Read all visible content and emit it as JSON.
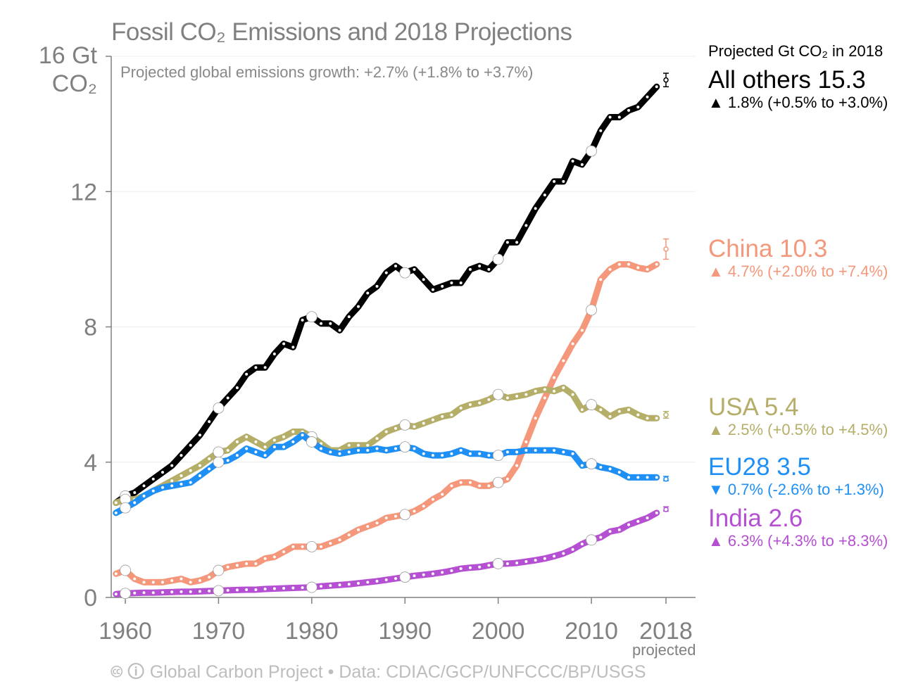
{
  "chart_data": {
    "type": "line",
    "title": "Fossil CO₂ Emissions and 2018 Projections",
    "subtitle": "Projected global emissions growth: +2.7% (+1.8% to +3.7%)",
    "ylabel": [
      "16 Gt",
      "CO₂"
    ],
    "ylim": [
      0,
      16
    ],
    "xlim": [
      1959,
      2018
    ],
    "yticks": [
      0,
      4,
      8,
      12
    ],
    "xticks": [
      1960,
      1970,
      1980,
      1990,
      2000,
      2010,
      2018
    ],
    "xtick_labels": [
      "1960",
      "1970",
      "1980",
      "1990",
      "2000",
      "2010",
      "2018"
    ],
    "xtick_note": "projected",
    "grid": true,
    "legend_title": "Projected Gt CO₂ in 2018",
    "legend_placement": "right",
    "x_start": 1959,
    "series": [
      {
        "name": "All others",
        "color": "#000000",
        "label": "All others 15.3",
        "change": "▲ 1.8% (+0.5% to +3.0%)",
        "projection": 15.3,
        "projection_range": [
          15.1,
          15.5
        ],
        "values": [
          2.8,
          3.0,
          3.1,
          3.3,
          3.5,
          3.7,
          3.9,
          4.2,
          4.5,
          4.8,
          5.2,
          5.6,
          5.9,
          6.2,
          6.6,
          6.8,
          6.8,
          7.2,
          7.5,
          7.4,
          8.2,
          8.3,
          8.1,
          8.1,
          7.9,
          8.3,
          8.6,
          9.0,
          9.2,
          9.6,
          9.8,
          9.6,
          9.7,
          9.4,
          9.1,
          9.2,
          9.3,
          9.3,
          9.7,
          9.8,
          9.7,
          10.0,
          10.5,
          10.5,
          11.0,
          11.5,
          11.9,
          12.3,
          12.3,
          12.9,
          12.8,
          13.2,
          13.8,
          14.2,
          14.2,
          14.4,
          14.5,
          14.8,
          15.1
        ]
      },
      {
        "name": "China",
        "color": "#f4977a",
        "label": "China 10.3",
        "change": "▲ 4.7% (+2.0% to +7.4%)",
        "projection": 10.3,
        "projection_range": [
          10.0,
          10.6
        ],
        "values": [
          0.7,
          0.8,
          0.55,
          0.45,
          0.45,
          0.45,
          0.5,
          0.55,
          0.45,
          0.5,
          0.6,
          0.8,
          0.9,
          0.95,
          1.0,
          1.0,
          1.15,
          1.2,
          1.35,
          1.5,
          1.5,
          1.5,
          1.5,
          1.6,
          1.7,
          1.85,
          2.0,
          2.1,
          2.2,
          2.35,
          2.4,
          2.45,
          2.55,
          2.7,
          2.9,
          3.05,
          3.3,
          3.4,
          3.4,
          3.3,
          3.3,
          3.4,
          3.5,
          3.9,
          4.6,
          5.3,
          5.9,
          6.5,
          7.0,
          7.5,
          7.9,
          8.5,
          9.4,
          9.7,
          9.85,
          9.85,
          9.75,
          9.7,
          9.85
        ]
      },
      {
        "name": "USA",
        "color": "#b5ae68",
        "label": "USA 5.4",
        "change": "▲ 2.5% (+0.5% to +4.5%)",
        "projection": 5.4,
        "projection_range": [
          5.3,
          5.5
        ],
        "values": [
          2.8,
          2.9,
          2.9,
          3.0,
          3.15,
          3.3,
          3.45,
          3.6,
          3.75,
          3.9,
          4.1,
          4.3,
          4.35,
          4.6,
          4.75,
          4.6,
          4.45,
          4.65,
          4.75,
          4.9,
          4.9,
          4.75,
          4.55,
          4.35,
          4.35,
          4.5,
          4.5,
          4.5,
          4.7,
          4.9,
          5.0,
          5.1,
          5.05,
          5.15,
          5.25,
          5.35,
          5.4,
          5.6,
          5.7,
          5.75,
          5.85,
          6.0,
          5.9,
          5.95,
          6.0,
          6.1,
          6.15,
          6.1,
          6.2,
          6.0,
          5.55,
          5.7,
          5.55,
          5.35,
          5.5,
          5.55,
          5.4,
          5.3,
          5.3
        ]
      },
      {
        "name": "EU28",
        "color": "#1e8ff5",
        "label": "EU28 3.5",
        "change": "▼ 0.7% (-2.6% to +1.3%)",
        "projection": 3.5,
        "projection_range": [
          3.45,
          3.58
        ],
        "values": [
          2.5,
          2.65,
          2.8,
          3.0,
          3.15,
          3.25,
          3.3,
          3.35,
          3.4,
          3.6,
          3.8,
          4.0,
          4.05,
          4.2,
          4.4,
          4.3,
          4.2,
          4.45,
          4.45,
          4.6,
          4.8,
          4.6,
          4.4,
          4.3,
          4.25,
          4.3,
          4.35,
          4.35,
          4.4,
          4.35,
          4.4,
          4.45,
          4.4,
          4.25,
          4.2,
          4.2,
          4.25,
          4.35,
          4.25,
          4.25,
          4.2,
          4.2,
          4.3,
          4.3,
          4.35,
          4.35,
          4.35,
          4.35,
          4.3,
          4.25,
          3.9,
          3.95,
          3.85,
          3.8,
          3.7,
          3.55,
          3.55,
          3.55,
          3.55
        ]
      },
      {
        "name": "India",
        "color": "#b550d2",
        "label": "India 2.6",
        "change": "▲ 6.3% (+4.3% to +8.3%)",
        "projection": 2.6,
        "projection_range": [
          2.55,
          2.68
        ],
        "values": [
          0.1,
          0.12,
          0.13,
          0.14,
          0.14,
          0.15,
          0.16,
          0.17,
          0.17,
          0.18,
          0.19,
          0.2,
          0.21,
          0.22,
          0.23,
          0.23,
          0.25,
          0.26,
          0.27,
          0.28,
          0.29,
          0.3,
          0.33,
          0.35,
          0.37,
          0.39,
          0.42,
          0.45,
          0.48,
          0.52,
          0.56,
          0.6,
          0.64,
          0.67,
          0.7,
          0.74,
          0.79,
          0.85,
          0.88,
          0.9,
          0.95,
          1.0,
          1.0,
          1.02,
          1.06,
          1.1,
          1.15,
          1.22,
          1.3,
          1.42,
          1.58,
          1.7,
          1.78,
          1.95,
          2.0,
          2.15,
          2.25,
          2.35,
          2.5
        ]
      }
    ]
  },
  "footer": "🅭 🛈 Global Carbon Project  •  Data: CDIAC/GCP/UNFCCC/BP/USGS"
}
